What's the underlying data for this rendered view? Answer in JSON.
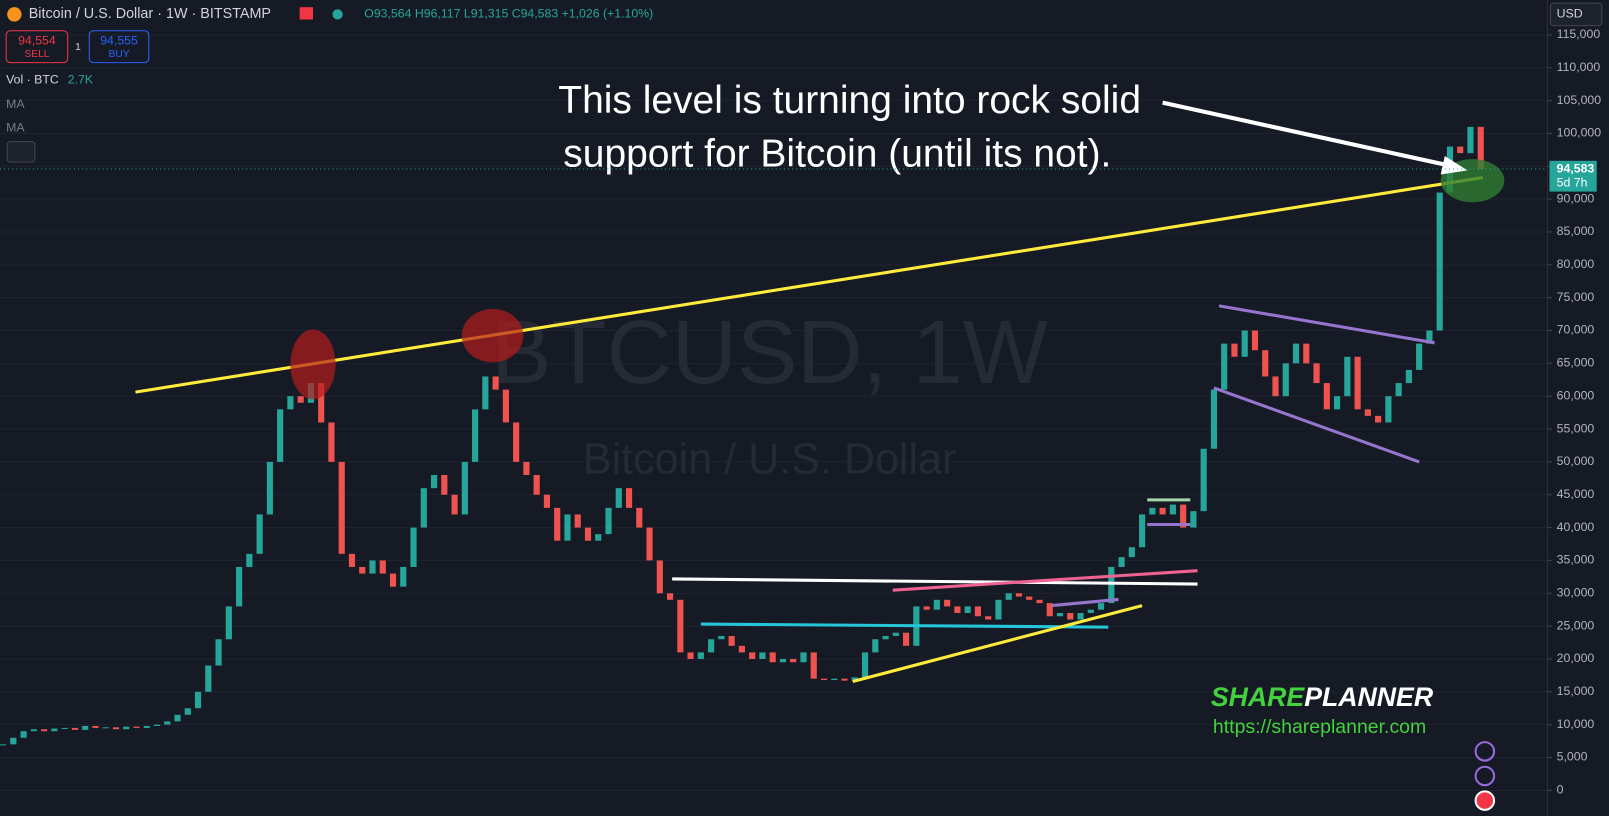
{
  "chart_data": {
    "type": "candlestick",
    "header": "Bitcoin / U.S. Dollar · 1W · BITSTAMP",
    "ohlc_text": "O93,564 H96,117 L91,315 C94,583 +1,026 (+1.10%)",
    "sell_price": "94,554",
    "sell_label": "SELL",
    "qty": "1",
    "buy_price": "94,555",
    "buy_label": "BUY",
    "volume_label": "Vol · BTC",
    "volume_value": "2.7K",
    "ma_labels": [
      "MA",
      "MA"
    ],
    "currency": "USD",
    "watermark_symbol": "BTCUSD, 1W",
    "watermark_name": "Bitcoin / U.S. Dollar",
    "annotation": [
      "This level is turning into rock solid",
      "support for Bitcoin (until its not)."
    ],
    "brand_share": "SHARE",
    "brand_planner": "PLANNER",
    "brand_url": "https://shareplanner.com",
    "last_price": {
      "value": 94583,
      "label": "94,583"
    },
    "countdown": "5d 7h",
    "up_color": "#26a69a",
    "down_color": "#ef5350",
    "grid": true,
    "ylim": [
      0,
      115000
    ],
    "yticks": [
      0,
      {
        "value": 5000,
        "label": "5,000"
      },
      {
        "value": 10000,
        "label": "10,000"
      },
      {
        "value": 15000,
        "label": "15,000"
      },
      {
        "value": 20000,
        "label": "20,000"
      },
      {
        "value": 25000,
        "label": "25,000"
      },
      {
        "value": 30000,
        "label": "30,000"
      },
      {
        "value": 35000,
        "label": "35,000"
      },
      {
        "value": 40000,
        "label": "40,000"
      },
      {
        "value": 45000,
        "label": "45,000"
      },
      {
        "value": 50000,
        "label": "50,000"
      },
      {
        "value": 55000,
        "label": "55,000"
      },
      {
        "value": 60000,
        "label": "60,000"
      },
      {
        "value": 65000,
        "label": "65,000"
      },
      {
        "value": 70000,
        "label": "70,000"
      },
      {
        "value": 75000,
        "label": "75,000"
      },
      {
        "value": 80000,
        "label": "80,000"
      },
      {
        "value": 85000,
        "label": "85,000"
      },
      {
        "value": 90000,
        "label": "90,000"
      },
      {
        "value": 95000,
        "label": "95,000"
      },
      {
        "value": 100000,
        "label": "100,000"
      },
      {
        "value": 105000,
        "label": "105,000"
      },
      {
        "value": 110000,
        "label": "110,000"
      },
      {
        "value": 115000,
        "label": "115,000"
      }
    ],
    "close": [
      7000,
      8000,
      9000,
      9300,
      9000,
      9400,
      9500,
      9200,
      9800,
      9500,
      9600,
      9300,
      9700,
      9500,
      9800,
      10000,
      10500,
      11500,
      12500,
      15000,
      19000,
      23000,
      28000,
      34000,
      36000,
      42000,
      50000,
      58000,
      60000,
      59000,
      62000,
      56000,
      50000,
      36000,
      34000,
      33000,
      35000,
      33000,
      31000,
      34000,
      40000,
      46000,
      48000,
      45000,
      42000,
      50000,
      58000,
      63000,
      61000,
      56000,
      50000,
      48000,
      45000,
      43000,
      38000,
      42000,
      40000,
      38000,
      39000,
      43000,
      46000,
      43000,
      40000,
      35000,
      30000,
      29000,
      21000,
      20000,
      21000,
      23000,
      23500,
      22000,
      21000,
      20000,
      21000,
      19500,
      20000,
      19500,
      21000,
      17000,
      16800,
      17000,
      16700,
      17200,
      21000,
      23000,
      23500,
      24000,
      22000,
      28000,
      27500,
      29000,
      28000,
      27000,
      28000,
      26500,
      26000,
      29000,
      30000,
      29500,
      29000,
      28500,
      26500,
      27000,
      26000,
      27000,
      27500,
      28500,
      34000,
      35500,
      37000,
      42000,
      43000,
      42000,
      43500,
      40000,
      42500,
      52000,
      61000,
      68000,
      66000,
      70000,
      67000,
      63000,
      60000,
      65000,
      68000,
      65000,
      62000,
      58000,
      60000,
      66000,
      58000,
      57000,
      56000,
      60000,
      62000,
      64000,
      68000,
      70000,
      91000,
      98000,
      97000,
      101000,
      94583
    ]
  }
}
